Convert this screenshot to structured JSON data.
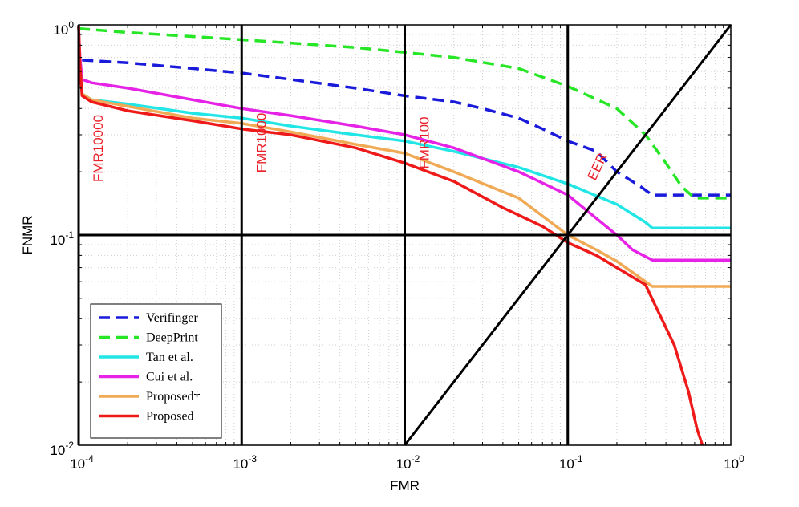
{
  "chart_data": {
    "type": "line",
    "title": "",
    "xlabel": "FMR",
    "ylabel": "FNMR",
    "xscale": "log",
    "yscale": "log",
    "xlim": [
      0.0001,
      1
    ],
    "ylim": [
      0.01,
      1
    ],
    "grid": "minor-dotted",
    "legend_position": "bottom-left",
    "x_ticks": [
      {
        "base": "10",
        "exp": "-4",
        "value": 0.0001
      },
      {
        "base": "10",
        "exp": "-3",
        "value": 0.001
      },
      {
        "base": "10",
        "exp": "-2",
        "value": 0.01
      },
      {
        "base": "10",
        "exp": "-1",
        "value": 0.1
      },
      {
        "base": "10",
        "exp": "0",
        "value": 1
      }
    ],
    "y_ticks": [
      {
        "base": "10",
        "exp": "-2",
        "value": 0.01
      },
      {
        "base": "10",
        "exp": "-1",
        "value": 0.1
      },
      {
        "base": "10",
        "exp": "0",
        "value": 1
      }
    ],
    "reference_lines": [
      {
        "name": "fmr10000",
        "label": "FMR10000",
        "type": "vertical",
        "x": 0.0001
      },
      {
        "name": "fmr1000",
        "label": "FMR1000",
        "type": "vertical",
        "x": 0.001
      },
      {
        "name": "fmr100",
        "label": "FMR100",
        "type": "vertical",
        "x": 0.01
      },
      {
        "name": "fmr10",
        "label": "",
        "type": "vertical",
        "x": 0.1
      },
      {
        "name": "fnmr10",
        "label": "",
        "type": "horizontal",
        "y": 0.1
      },
      {
        "name": "eer",
        "label": "EER",
        "type": "diagonal",
        "from": [
          0.01,
          0.01
        ],
        "to": [
          1,
          1
        ]
      }
    ],
    "series": [
      {
        "name": "Verifinger",
        "color": "#1a1adb",
        "style": "dashed",
        "points": [
          [
            0.000105,
            0.68
          ],
          [
            0.0002,
            0.66
          ],
          [
            0.0005,
            0.62
          ],
          [
            0.001,
            0.59
          ],
          [
            0.002,
            0.55
          ],
          [
            0.005,
            0.5
          ],
          [
            0.01,
            0.46
          ],
          [
            0.02,
            0.43
          ],
          [
            0.03,
            0.4
          ],
          [
            0.05,
            0.36
          ],
          [
            0.07,
            0.32
          ],
          [
            0.1,
            0.28
          ],
          [
            0.15,
            0.25
          ],
          [
            0.2,
            0.2
          ],
          [
            0.28,
            0.17
          ],
          [
            0.33,
            0.155
          ],
          [
            0.5,
            0.155
          ],
          [
            1,
            0.155
          ]
        ]
      },
      {
        "name": "DeepPrint",
        "color": "#26e626",
        "style": "dashed",
        "points": [
          [
            0.0001,
            0.96
          ],
          [
            0.0002,
            0.92
          ],
          [
            0.0005,
            0.88
          ],
          [
            0.001,
            0.85
          ],
          [
            0.002,
            0.82
          ],
          [
            0.005,
            0.78
          ],
          [
            0.01,
            0.74
          ],
          [
            0.02,
            0.7
          ],
          [
            0.05,
            0.62
          ],
          [
            0.1,
            0.51
          ],
          [
            0.2,
            0.4
          ],
          [
            0.3,
            0.3
          ],
          [
            0.4,
            0.22
          ],
          [
            0.5,
            0.17
          ],
          [
            0.6,
            0.15
          ],
          [
            1,
            0.15
          ]
        ]
      },
      {
        "name": "Tan et al.",
        "color": "#22e6e6",
        "style": "solid",
        "points": [
          [
            0.0001,
            0.98
          ],
          [
            0.000102,
            0.65
          ],
          [
            0.000105,
            0.47
          ],
          [
            0.00012,
            0.44
          ],
          [
            0.0002,
            0.42
          ],
          [
            0.0005,
            0.38
          ],
          [
            0.001,
            0.36
          ],
          [
            0.002,
            0.33
          ],
          [
            0.005,
            0.3
          ],
          [
            0.01,
            0.28
          ],
          [
            0.02,
            0.25
          ],
          [
            0.05,
            0.21
          ],
          [
            0.1,
            0.175
          ],
          [
            0.2,
            0.14
          ],
          [
            0.3,
            0.115
          ],
          [
            0.33,
            0.108
          ],
          [
            0.5,
            0.108
          ],
          [
            1,
            0.108
          ]
        ]
      },
      {
        "name": "Cui et al.",
        "color": "#e622e6",
        "style": "solid",
        "points": [
          [
            0.0001,
            0.98
          ],
          [
            0.000102,
            0.7
          ],
          [
            0.000105,
            0.55
          ],
          [
            0.00012,
            0.53
          ],
          [
            0.0002,
            0.5
          ],
          [
            0.0005,
            0.44
          ],
          [
            0.001,
            0.4
          ],
          [
            0.002,
            0.37
          ],
          [
            0.005,
            0.33
          ],
          [
            0.01,
            0.3
          ],
          [
            0.02,
            0.26
          ],
          [
            0.05,
            0.2
          ],
          [
            0.1,
            0.155
          ],
          [
            0.15,
            0.12
          ],
          [
            0.2,
            0.1
          ],
          [
            0.25,
            0.085
          ],
          [
            0.33,
            0.076
          ],
          [
            0.5,
            0.076
          ],
          [
            1,
            0.076
          ]
        ]
      },
      {
        "name": "Proposed†",
        "color": "#f0aa55",
        "style": "solid",
        "points": [
          [
            0.0001,
            0.98
          ],
          [
            0.000102,
            0.65
          ],
          [
            0.000105,
            0.47
          ],
          [
            0.00012,
            0.44
          ],
          [
            0.0002,
            0.41
          ],
          [
            0.0005,
            0.36
          ],
          [
            0.001,
            0.34
          ],
          [
            0.002,
            0.31
          ],
          [
            0.005,
            0.27
          ],
          [
            0.01,
            0.245
          ],
          [
            0.02,
            0.2
          ],
          [
            0.05,
            0.15
          ],
          [
            0.1,
            0.1
          ],
          [
            0.15,
            0.085
          ],
          [
            0.2,
            0.075
          ],
          [
            0.3,
            0.06
          ],
          [
            0.33,
            0.057
          ],
          [
            0.5,
            0.057
          ],
          [
            1,
            0.057
          ]
        ]
      },
      {
        "name": "Proposed",
        "color": "#ee1a1a",
        "style": "solid",
        "points": [
          [
            0.0001,
            0.98
          ],
          [
            0.000102,
            0.65
          ],
          [
            0.000105,
            0.46
          ],
          [
            0.00012,
            0.43
          ],
          [
            0.0002,
            0.39
          ],
          [
            0.0005,
            0.35
          ],
          [
            0.001,
            0.32
          ],
          [
            0.002,
            0.3
          ],
          [
            0.005,
            0.26
          ],
          [
            0.01,
            0.22
          ],
          [
            0.02,
            0.18
          ],
          [
            0.04,
            0.135
          ],
          [
            0.07,
            0.11
          ],
          [
            0.1,
            0.092
          ],
          [
            0.15,
            0.08
          ],
          [
            0.2,
            0.07
          ],
          [
            0.3,
            0.058
          ],
          [
            0.35,
            0.045
          ],
          [
            0.45,
            0.03
          ],
          [
            0.55,
            0.018
          ],
          [
            0.62,
            0.012
          ],
          [
            0.67,
            0.01
          ]
        ]
      }
    ]
  }
}
